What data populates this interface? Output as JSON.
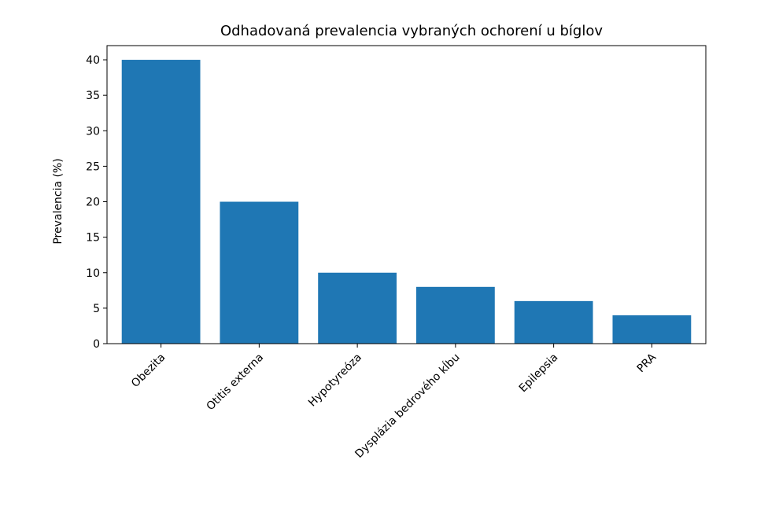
{
  "chart_data": {
    "type": "bar",
    "title": "Odhadovaná prevalencia vybraných ochorení u bíglov",
    "xlabel": "",
    "ylabel": "Prevalencia (%)",
    "categories": [
      "Obezita",
      "Otitis externa",
      "Hypotyreóza",
      "Dysplázia bedrového kĺbu",
      "Epilepsia",
      "PRA"
    ],
    "values": [
      40,
      20,
      10,
      8,
      6,
      4
    ],
    "ylim": [
      0,
      42
    ],
    "yticks": [
      0,
      5,
      10,
      15,
      20,
      25,
      30,
      35,
      40
    ],
    "yticklabels": [
      "0",
      "5",
      "10",
      "15",
      "20",
      "25",
      "30",
      "35",
      "40"
    ],
    "grid": false,
    "legend": "none",
    "colors": {
      "bar": "#1f77b4",
      "axis": "#000000",
      "background": "#ffffff"
    }
  }
}
